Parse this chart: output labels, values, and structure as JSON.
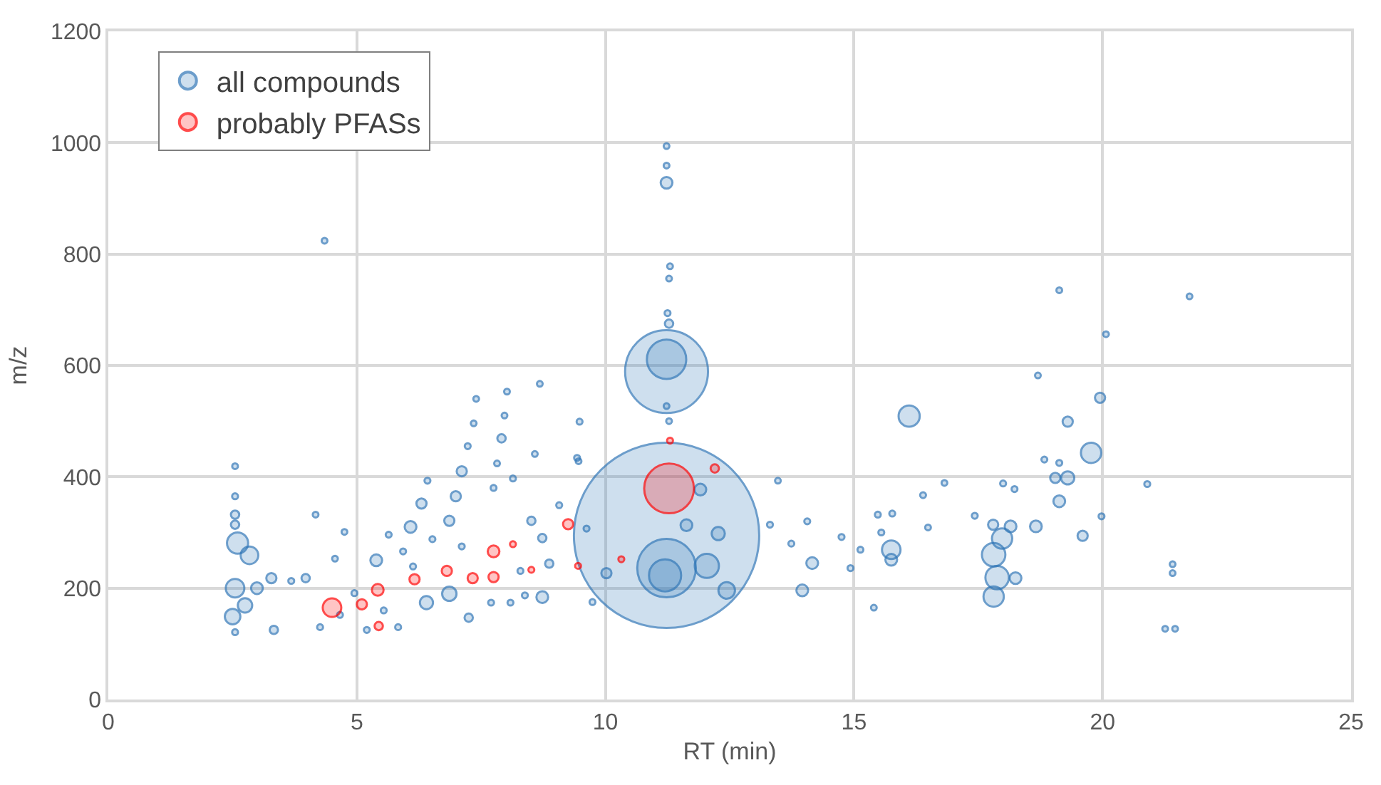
{
  "chart_data": {
    "type": "bubble",
    "xlabel": "RT (min)",
    "ylabel": "m/z",
    "xlim": [
      0,
      25
    ],
    "xticks": [
      0,
      5,
      10,
      15,
      20,
      25
    ],
    "ylim": [
      0,
      1200
    ],
    "yticks": [
      0,
      200,
      400,
      600,
      800,
      1000,
      1200
    ],
    "grid": true,
    "legend": "top left",
    "series": [
      {
        "name": "all compounds",
        "color": "#2e75b6",
        "x": [
          11.23,
          11.23,
          11.23,
          11.23,
          11.2,
          2.55,
          2.55,
          2.55,
          2.55,
          2.6,
          2.84,
          2.55,
          2.75,
          2.5,
          2.55,
          2.99,
          3.28,
          3.68,
          3.97,
          3.33,
          5.39,
          6.08,
          6.3,
          6.86,
          6.99,
          7.11,
          7.23,
          7.4,
          8.02,
          8.68,
          7.91,
          7.97,
          7.35,
          7.82,
          8.58,
          6.86,
          6.4,
          7.25,
          8.73,
          8.87,
          8.51,
          8.73,
          4.56,
          4.75,
          4.17,
          4.95,
          5.93,
          5.64,
          6.52,
          5.83,
          6.42,
          7.75,
          8.14,
          9.46,
          9.07,
          8.38,
          8.09,
          4.66,
          4.26,
          5.2,
          6.13,
          5.54,
          7.7,
          8.29,
          7.11,
          4.35,
          11.23,
          11.23,
          11.23,
          11.3,
          11.28,
          11.25,
          11.28,
          11.23,
          11.28,
          12.04,
          12.44,
          12.27,
          11.63,
          11.91,
          13.96,
          14.16,
          13.74,
          14.06,
          13.47,
          9.48,
          9.43,
          9.62,
          10.02,
          9.74,
          16.11,
          20.07,
          19.13,
          18.7,
          19.95,
          19.3,
          19.77,
          19.3,
          19.05,
          19.13,
          19.13,
          18.83,
          20.9,
          19.6,
          19.98,
          18.66,
          17.8,
          17.98,
          18.15,
          17.81,
          17.88,
          17.81,
          18.25,
          15.75,
          15.75,
          15.48,
          15.77,
          15.55,
          16.39,
          16.49,
          16.82,
          17.43,
          18.0,
          18.23,
          13.31,
          14.75,
          15.13,
          14.93,
          15.4,
          21.41,
          21.41,
          21.26,
          21.46,
          21.75
        ],
        "values": [
          295,
          589,
          236,
          611,
          223,
          419,
          365,
          332,
          314,
          281,
          259,
          200,
          169,
          149,
          121,
          200,
          218,
          213,
          218,
          125,
          250,
          310,
          352,
          321,
          365,
          410,
          455,
          540,
          553,
          567,
          469,
          510,
          496,
          424,
          441,
          190,
          174,
          147,
          184,
          244,
          321,
          290,
          253,
          301,
          332,
          191,
          266,
          296,
          288,
          130,
          393,
          380,
          397,
          428,
          349,
          187,
          174,
          152,
          130,
          125,
          239,
          160,
          174,
          231,
          275,
          824,
          928,
          994,
          959,
          778,
          756,
          694,
          675,
          527,
          500,
          240,
          196,
          298,
          313,
          377,
          196,
          245,
          280,
          320,
          393,
          499,
          434,
          307,
          227,
          175,
          509,
          656,
          735,
          582,
          542,
          499,
          443,
          398,
          398,
          356,
          425,
          431,
          387,
          294,
          329,
          311,
          314,
          289,
          311,
          260,
          219,
          185,
          218,
          269,
          251,
          332,
          334,
          300,
          367,
          309,
          389,
          330,
          388,
          378,
          314,
          292,
          269,
          236,
          165,
          243,
          227,
          127,
          127,
          724
        ],
        "sizes": [
          1,
          0.2,
          0.1,
          0.045,
          0.03,
          0.0005,
          0.001,
          0.002,
          0.002,
          0.013,
          0.009,
          0.01,
          0.006,
          0.007,
          0.001,
          0.004,
          0.003,
          0.001,
          0.002,
          0.002,
          0.004,
          0.004,
          0.003,
          0.003,
          0.003,
          0.003,
          0.001,
          0.0005,
          0.0005,
          0.0005,
          0.002,
          0.0005,
          0.0005,
          0.0005,
          0.0005,
          0.006,
          0.005,
          0.002,
          0.004,
          0.002,
          0.002,
          0.002,
          0.0005,
          0.0005,
          0.0005,
          0.001,
          0.001,
          0.001,
          0.001,
          0.001,
          0.001,
          0.001,
          0.001,
          0.0005,
          0.001,
          0.001,
          0.001,
          0.001,
          0.001,
          0.001,
          0.001,
          0.001,
          0.001,
          0.001,
          0.001,
          0.0005,
          0.004,
          0.0005,
          0.0005,
          0.0005,
          0.0005,
          0.001,
          0.002,
          0.0005,
          0.0005,
          0.017,
          0.008,
          0.005,
          0.004,
          0.004,
          0.004,
          0.004,
          0.001,
          0.001,
          0.0005,
          0.001,
          0.001,
          0.001,
          0.003,
          0.001,
          0.013,
          0.0005,
          0.0005,
          0.0005,
          0.003,
          0.003,
          0.012,
          0.005,
          0.003,
          0.004,
          0.001,
          0.001,
          0.001,
          0.003,
          0.001,
          0.004,
          0.003,
          0.012,
          0.004,
          0.016,
          0.016,
          0.012,
          0.004,
          0.01,
          0.004,
          0.001,
          0.001,
          0.001,
          0.001,
          0.0005,
          0.0005,
          0.001,
          0.001,
          0.001,
          0.001,
          0.001,
          0.001,
          0.001,
          0.0005,
          0.0005,
          0.0005,
          0.0005,
          0.0005,
          0.0005
        ]
      },
      {
        "name": "probably PFASs",
        "color": "#ff0000",
        "x": [
          4.5,
          5.1,
          5.42,
          5.44,
          6.16,
          6.81,
          7.33,
          7.75,
          7.75,
          8.14,
          8.51,
          9.25,
          9.45,
          11.3,
          11.28,
          12.2,
          10.32
        ],
        "values": [
          165,
          171,
          197,
          132,
          216,
          231,
          218,
          266,
          220,
          279,
          233,
          315,
          240,
          465,
          379,
          415,
          252
        ],
        "sizes": [
          0.01,
          0.003,
          0.004,
          0.002,
          0.003,
          0.003,
          0.003,
          0.004,
          0.003,
          0.001,
          0.001,
          0.003,
          0.001,
          0.001,
          0.072,
          0.002,
          0.001
        ]
      }
    ]
  }
}
